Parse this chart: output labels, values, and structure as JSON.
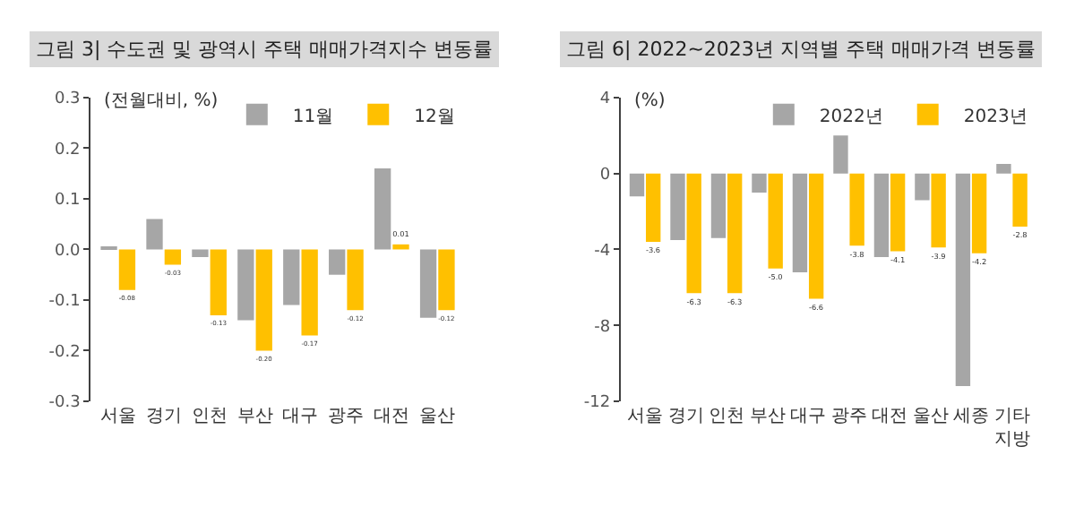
{
  "chart_data": [
    {
      "type": "bar",
      "title": "그림 3| 수도권 및 광역시 주택 매매가격지수 변동률",
      "ylabel": "(전월대비, %)",
      "categories": [
        "서울",
        "경기",
        "인천",
        "부산",
        "대구",
        "광주",
        "대전",
        "울산"
      ],
      "series": [
        {
          "name": "11월",
          "color": "#a6a6a6",
          "values": [
            0.005,
            0.06,
            -0.015,
            -0.14,
            -0.11,
            -0.05,
            0.16,
            -0.135
          ]
        },
        {
          "name": "12월",
          "color": "#ffc000",
          "values": [
            -0.08,
            -0.03,
            -0.13,
            -0.2,
            -0.17,
            -0.12,
            0.01,
            -0.12
          ],
          "value_labels": [
            "-0.08",
            "-0.03",
            "-0.13",
            "-0.20",
            "-0.17",
            "-0.12",
            "0.01",
            "-0.12"
          ]
        }
      ],
      "ylim": [
        -0.3,
        0.3
      ],
      "yticks": [
        {
          "value": -0.3,
          "label": "-0.3"
        },
        {
          "value": -0.2,
          "label": "-0.2"
        },
        {
          "value": -0.1,
          "label": "-0.1"
        },
        {
          "value": 0,
          "label": "0.0"
        },
        {
          "value": 0.1,
          "label": "0.1"
        },
        {
          "value": 0.2,
          "label": "0.2"
        },
        {
          "value": 0.3,
          "label": "0.3"
        }
      ],
      "legend": "top right"
    },
    {
      "type": "bar",
      "title": "그림 6| 2022~2023년 지역별 주택 매매가격 변동률",
      "ylabel": "(%)",
      "categories": [
        "서울",
        "경기",
        "인천",
        "부산",
        "대구",
        "광주",
        "대전",
        "울산",
        "세종",
        "기타\n지방"
      ],
      "series": [
        {
          "name": "2022년",
          "color": "#a6a6a6",
          "values": [
            -1.2,
            -3.5,
            -3.4,
            -1.0,
            -5.2,
            2.0,
            -4.4,
            -1.4,
            -11.2,
            0.5
          ]
        },
        {
          "name": "2023년",
          "color": "#ffc000",
          "values": [
            -3.6,
            -6.3,
            -6.3,
            -5.0,
            -6.6,
            -3.8,
            -4.1,
            -3.9,
            -4.2,
            -2.8
          ],
          "value_labels": [
            "-3.6",
            "-6.3",
            "-6.3",
            "-5.0",
            "-6.6",
            "-3.8",
            "-4.1",
            "-3.9",
            "-4.2",
            "-2.8"
          ]
        }
      ],
      "ylim": [
        -12,
        4
      ],
      "yticks": [
        -12,
        -8,
        -4,
        0,
        4
      ],
      "legend": "top right"
    }
  ]
}
